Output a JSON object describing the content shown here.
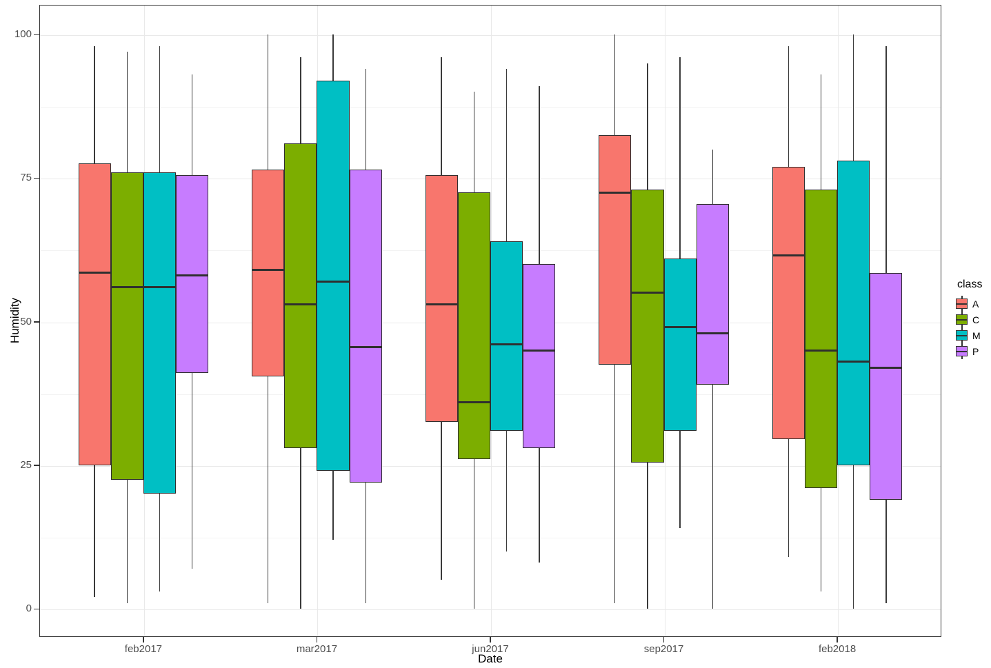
{
  "figure": {
    "x_axis": {
      "title": "Date",
      "tick_labels": [
        "feb2017",
        "mar2017",
        "jun2017",
        "sep2017",
        "feb2018"
      ]
    },
    "y_axis": {
      "title": "Humidity",
      "tick_labels": [
        "0",
        "25",
        "50",
        "75",
        "100"
      ]
    },
    "legend": {
      "title": "class",
      "entries": [
        {
          "label": "A",
          "color": "#F8766D"
        },
        {
          "label": "C",
          "color": "#7CAE00"
        },
        {
          "label": "M",
          "color": "#00BFC4"
        },
        {
          "label": "P",
          "color": "#C77CFF"
        }
      ]
    },
    "colors": {
      "panel_border": "#333333",
      "grid_major": "#e9e9e9",
      "grid_minor": "#f3f3f3",
      "box_stroke": "#2f2f2f",
      "axis_text": "#4d4d4d"
    }
  },
  "chart_data": {
    "type": "boxplot",
    "title": "",
    "xlabel": "Date",
    "ylabel": "Humidity",
    "categories": [
      "feb2017",
      "mar2017",
      "jun2017",
      "sep2017",
      "feb2018"
    ],
    "y_ticks": [
      0,
      25,
      50,
      75,
      100
    ],
    "ylim": [
      -5,
      105
    ],
    "grid": "horizontal major+minor, vertical major only",
    "legend_position": "right",
    "legend_title": "class",
    "box_format": [
      "whisker_low",
      "q1",
      "median",
      "q3",
      "whisker_high"
    ],
    "series": [
      {
        "name": "A",
        "color": "#F8766D",
        "boxes": [
          [
            2,
            25,
            58.5,
            77.5,
            98
          ],
          [
            1,
            40.5,
            59,
            76.5,
            100
          ],
          [
            5,
            32.5,
            53,
            75.5,
            96
          ],
          [
            1,
            42.5,
            72.5,
            82.5,
            100
          ],
          [
            9,
            29.5,
            61.5,
            77,
            98
          ]
        ]
      },
      {
        "name": "C",
        "color": "#7CAE00",
        "boxes": [
          [
            1,
            22.5,
            56,
            76,
            97
          ],
          [
            0,
            28,
            53,
            81,
            96
          ],
          [
            0,
            26,
            36,
            72.5,
            90
          ],
          [
            0,
            25.5,
            55,
            73,
            95
          ],
          [
            3,
            21,
            45,
            73,
            93
          ]
        ]
      },
      {
        "name": "M",
        "color": "#00BFC4",
        "boxes": [
          [
            3,
            20,
            56,
            76,
            98
          ],
          [
            12,
            24,
            57,
            92,
            100
          ],
          [
            10,
            31,
            46,
            64,
            94
          ],
          [
            14,
            31,
            49,
            61,
            96
          ],
          [
            0,
            25,
            43,
            78,
            100
          ]
        ]
      },
      {
        "name": "P",
        "color": "#C77CFF",
        "boxes": [
          [
            7,
            41,
            58,
            75.5,
            93
          ],
          [
            1,
            22,
            45.5,
            76.5,
            94
          ],
          [
            8,
            28,
            45,
            60,
            91
          ],
          [
            0,
            39,
            48,
            70.5,
            80
          ],
          [
            1,
            19,
            42,
            58.5,
            98
          ]
        ]
      }
    ]
  }
}
